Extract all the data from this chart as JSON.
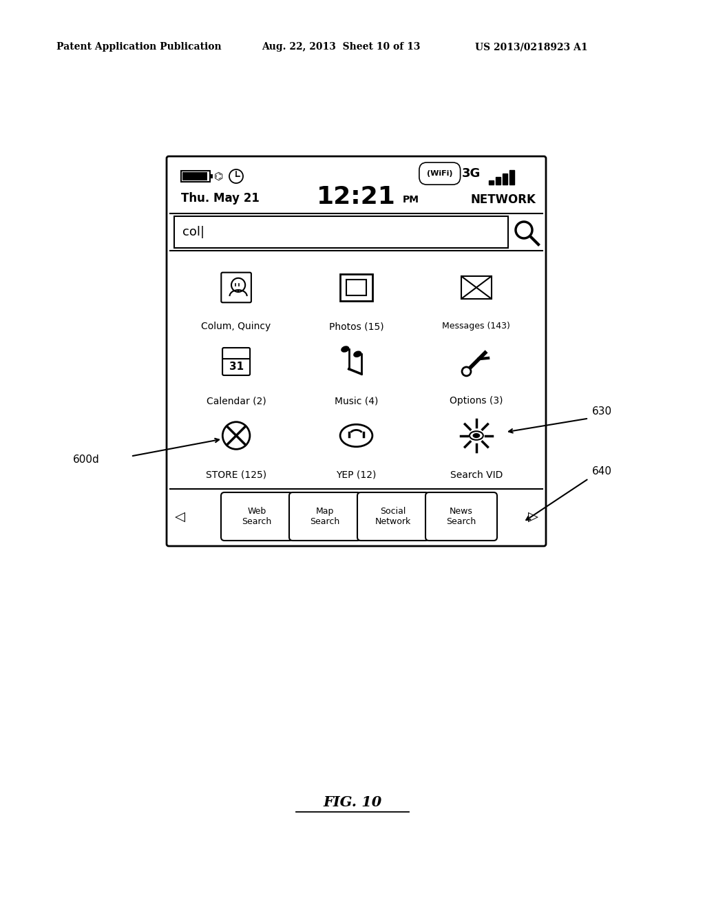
{
  "bg_color": "#ffffff",
  "header_text_left": "Patent Application Publication",
  "header_text_mid": "Aug. 22, 2013  Sheet 10 of 13",
  "header_text_right": "US 2013/0218923 A1",
  "time_text": "12:21",
  "time_suffix": "PM",
  "date_text": "Thu. May 21",
  "network_text": "NETWORK",
  "threeg_text": "3G",
  "search_text": "col|",
  "app_labels": [
    "Colum, Quincy",
    "Photos (15)",
    "Messages (143)",
    "Calendar (2)",
    "Music (4)",
    "Options (3)",
    "STORE (125)",
    "YEP (12)",
    "Search VID"
  ],
  "bottom_buttons": [
    "Web\nSearch",
    "Map\nSearch",
    "Social\nNetwork",
    "News\nSearch"
  ],
  "label_600d": "600d",
  "label_630": "630",
  "label_640": "640",
  "fig_label": "FIG. 10"
}
